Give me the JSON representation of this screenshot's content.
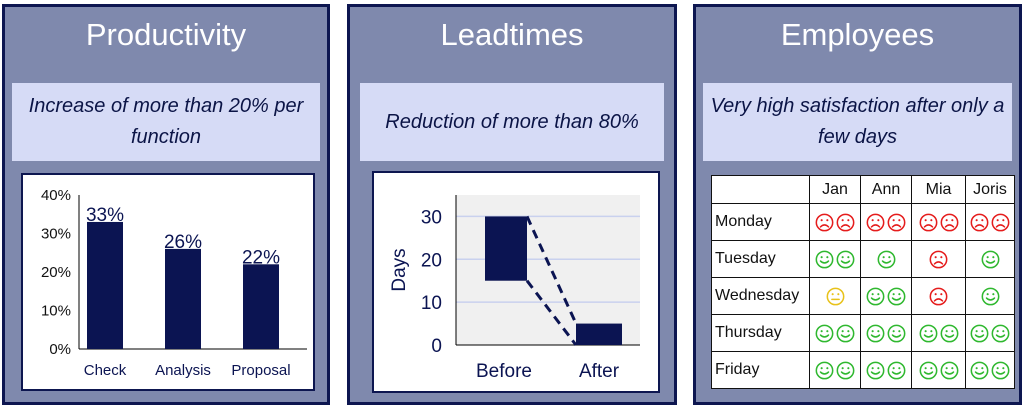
{
  "panels": {
    "productivity": {
      "title": "Productivity",
      "subtitle": "Increase of more than 20% per function"
    },
    "leadtimes": {
      "title": "Leadtimes",
      "subtitle": "Reduction of more than 80%"
    },
    "employees": {
      "title": "Employees",
      "subtitle": "Very high satisfaction after only a few days",
      "columns": [
        "",
        "Jan",
        "Ann",
        "Mia",
        "Joris"
      ],
      "rows": [
        {
          "day": "Monday",
          "cells": [
            [
              "sad",
              "sad"
            ],
            [
              "sad",
              "sad"
            ],
            [
              "sad",
              "sad"
            ],
            [
              "sad",
              "sad"
            ]
          ]
        },
        {
          "day": "Tuesday",
          "cells": [
            [
              "happy",
              "happy"
            ],
            [
              "happy"
            ],
            [
              "sad"
            ],
            [
              "happy"
            ]
          ]
        },
        {
          "day": "Wednesday",
          "cells": [
            [
              "neutral"
            ],
            [
              "happy",
              "happy"
            ],
            [
              "sad"
            ],
            [
              "happy"
            ]
          ]
        },
        {
          "day": "Thursday",
          "cells": [
            [
              "happy",
              "happy"
            ],
            [
              "happy",
              "happy"
            ],
            [
              "happy",
              "happy"
            ],
            [
              "happy",
              "happy"
            ]
          ]
        },
        {
          "day": "Friday",
          "cells": [
            [
              "happy",
              "happy"
            ],
            [
              "happy",
              "happy"
            ],
            [
              "happy",
              "happy"
            ],
            [
              "happy",
              "happy"
            ]
          ]
        }
      ],
      "colors": {
        "happy": "#2fb82f",
        "sad": "#e51c1c",
        "neutral": "#e8c21a"
      }
    }
  },
  "chart_data": [
    {
      "type": "bar",
      "categories": [
        "Check",
        "Analysis",
        "Proposal"
      ],
      "values": [
        33,
        26,
        22
      ],
      "data_labels": [
        "33%",
        "26%",
        "22%"
      ],
      "yticks": [
        "0%",
        "10%",
        "20%",
        "30%",
        "40%"
      ],
      "ylim": [
        0,
        40
      ],
      "grid": false,
      "colors": {
        "bar": "#0b1452"
      }
    },
    {
      "type": "bar",
      "categories": [
        "Before",
        "After"
      ],
      "ranges": [
        [
          15,
          30
        ],
        [
          0,
          5
        ]
      ],
      "ylabel": "Days",
      "yticks": [
        "0",
        "10",
        "20",
        "30"
      ],
      "ylim": [
        0,
        35
      ],
      "grid": true,
      "colors": {
        "bar": "#0b1452",
        "grid": "#c9d1ee",
        "plot_bg": "#f0f0f0"
      }
    }
  ]
}
